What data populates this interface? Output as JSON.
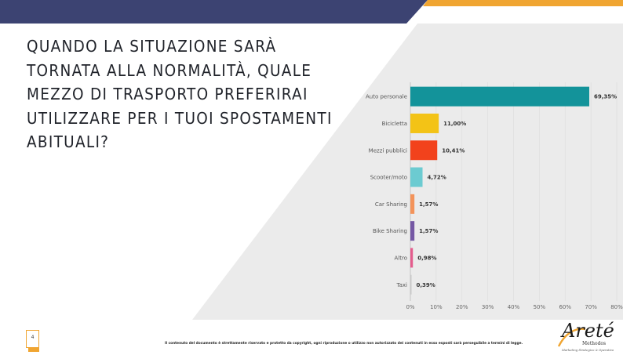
{
  "title": "Quando la situazione sarà tornata alla normalità, quale mezzo di trasporto preferirai utilizzare per i tuoi spostamenti abituali?",
  "page_number": "4",
  "footer_text": "Il contenuto del documento è strettamente riservato e protetto da copyright, ogni riproduzione o utilizzo non autorizzato dei contenuti in esso esposti sarà perseguibile a termini di legge.",
  "logo": {
    "name": "Areté",
    "sub": "Methodos",
    "tagline": "Marketing Strategico & Operativo"
  },
  "colors": {
    "topbar_navy": "#3c4372",
    "topbar_orange": "#f0a531",
    "panel": "#ebebeb"
  },
  "chart_data": {
    "type": "bar",
    "orientation": "horizontal",
    "categories": [
      "Auto personale",
      "Bicicletta",
      "Mezzi pubblici",
      "Scooter/moto",
      "Car Sharing",
      "Bike Sharing",
      "Altro",
      "Taxi"
    ],
    "values": [
      69.35,
      11.0,
      10.41,
      4.72,
      1.57,
      1.57,
      0.98,
      0.39
    ],
    "value_labels": [
      "69,35%",
      "11,00%",
      "10,41%",
      "4,72%",
      "1,57%",
      "1,57%",
      "0,98%",
      "0,39%"
    ],
    "bar_colors": [
      "#13939a",
      "#f3c316",
      "#f2421c",
      "#6ccbd1",
      "#f3935a",
      "#7558a4",
      "#e45c8d",
      "#c8c8c8"
    ],
    "xlim": [
      0,
      80
    ],
    "xticks": [
      "0%",
      "10%",
      "20%",
      "30%",
      "40%",
      "50%",
      "60%",
      "70%",
      "80%"
    ],
    "grid": true
  }
}
